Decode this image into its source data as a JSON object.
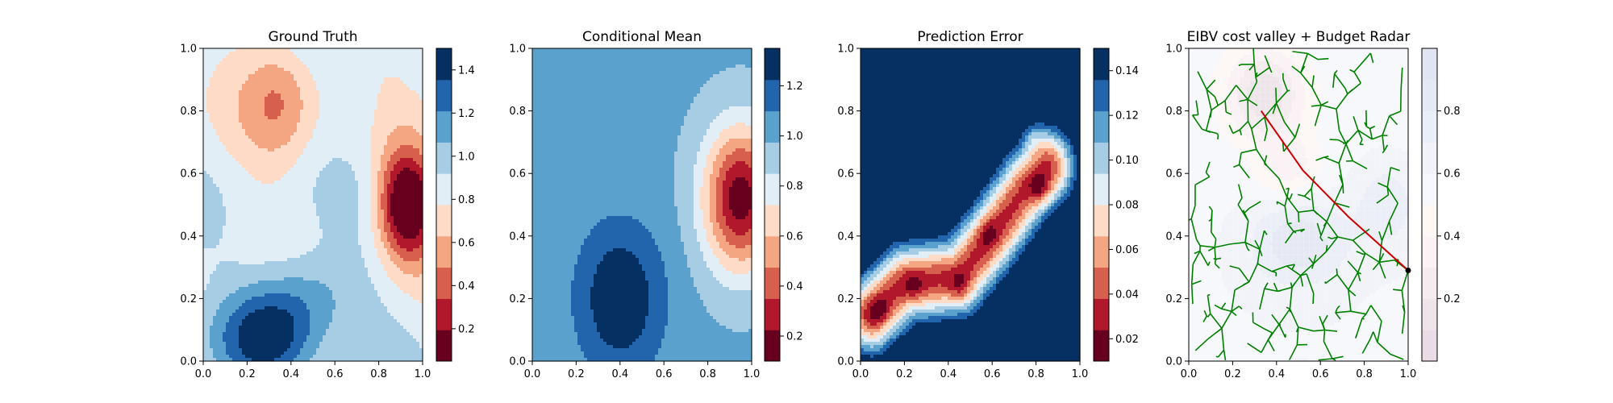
{
  "chart_data": [
    {
      "type": "heatmap",
      "title": "Ground Truth",
      "xlim": [
        0,
        1
      ],
      "ylim": [
        0,
        1
      ],
      "xticks": [
        "0.0",
        "0.2",
        "0.4",
        "0.6",
        "0.8",
        "1.0"
      ],
      "yticks": [
        "0.0",
        "0.2",
        "0.4",
        "0.6",
        "0.8",
        "1.0"
      ],
      "colormap": "RdBu",
      "colorbar": {
        "min": 0.05,
        "max": 1.5,
        "levels": 10,
        "ticks": [
          "0.2",
          "0.4",
          "0.6",
          "0.8",
          "1.0",
          "1.2",
          "1.4"
        ],
        "tick_values": [
          0.2,
          0.4,
          0.6,
          0.8,
          1.0,
          1.2,
          1.4
        ]
      },
      "field_features": [
        {
          "x": 0.93,
          "y": 0.5,
          "amp": -0.95,
          "sx": 0.09,
          "sy": 0.12
        },
        {
          "x": 0.35,
          "y": 0.85,
          "amp": -0.35,
          "sx": 0.12,
          "sy": 0.14
        },
        {
          "x": 0.3,
          "y": 0.08,
          "amp": 0.55,
          "sx": 0.16,
          "sy": 0.1
        },
        {
          "x": 0.45,
          "y": 0.22,
          "amp": 0.3,
          "sx": 0.18,
          "sy": 0.1
        },
        {
          "x": 0.72,
          "y": 0.85,
          "amp": 0.1,
          "sx": 0.06,
          "sy": 0.08
        }
      ],
      "field_base": 0.85
    },
    {
      "type": "heatmap",
      "title": "Conditional Mean",
      "xlim": [
        0,
        1
      ],
      "ylim": [
        0,
        1
      ],
      "xticks": [
        "0.0",
        "0.2",
        "0.4",
        "0.6",
        "0.8",
        "1.0"
      ],
      "yticks": [
        "0.0",
        "0.2",
        "0.4",
        "0.6",
        "0.8",
        "1.0"
      ],
      "colormap": "RdBu",
      "colorbar": {
        "min": 0.1,
        "max": 1.35,
        "levels": 10,
        "ticks": [
          "0.2",
          "0.4",
          "0.6",
          "0.8",
          "1.0",
          "1.2"
        ],
        "tick_values": [
          0.2,
          0.4,
          0.6,
          0.8,
          1.0,
          1.2
        ]
      },
      "field_features": [
        {
          "x": 0.95,
          "y": 0.52,
          "amp": -0.85,
          "sx": 0.12,
          "sy": 0.16
        },
        {
          "x": 0.4,
          "y": 0.2,
          "amp": 0.35,
          "sx": 0.14,
          "sy": 0.17
        }
      ],
      "field_base": 1.0
    },
    {
      "type": "heatmap",
      "title": "Prediction Error",
      "xlim": [
        0,
        1
      ],
      "ylim": [
        0,
        1
      ],
      "xticks": [
        "0.0",
        "0.2",
        "0.4",
        "0.6",
        "0.8",
        "1.0"
      ],
      "yticks": [
        "0.0",
        "0.2",
        "0.4",
        "0.6",
        "0.8",
        "1.0"
      ],
      "colormap": "RdBu",
      "colorbar": {
        "min": 0.01,
        "max": 0.15,
        "levels": 10,
        "ticks": [
          "0.02",
          "0.04",
          "0.06",
          "0.08",
          "0.10",
          "0.12",
          "0.14"
        ],
        "tick_values": [
          0.02,
          0.04,
          0.06,
          0.08,
          0.1,
          0.12,
          0.14
        ]
      },
      "path_points": [
        [
          0.05,
          0.15
        ],
        [
          0.2,
          0.25
        ],
        [
          0.45,
          0.27
        ],
        [
          0.6,
          0.4
        ],
        [
          0.75,
          0.55
        ],
        [
          0.85,
          0.62
        ]
      ],
      "pit_points": [
        {
          "x": 0.08,
          "y": 0.16,
          "amp": -0.025
        },
        {
          "x": 0.24,
          "y": 0.24,
          "amp": -0.02
        },
        {
          "x": 0.45,
          "y": 0.24,
          "amp": -0.02
        },
        {
          "x": 0.58,
          "y": 0.41,
          "amp": -0.02
        },
        {
          "x": 0.82,
          "y": 0.55,
          "amp": -0.03
        },
        {
          "x": 0.78,
          "y": 0.72,
          "amp": -0.02
        }
      ]
    },
    {
      "type": "heatmap",
      "title": "EIBV cost valley + Budget Radar",
      "xlim": [
        0,
        1
      ],
      "ylim": [
        0,
        1
      ],
      "xticks": [
        "0.0",
        "0.2",
        "0.4",
        "0.6",
        "0.8",
        "1.0"
      ],
      "yticks": [
        "0.0",
        "0.2",
        "0.4",
        "0.6",
        "0.8",
        "1.0"
      ],
      "colormap": "RdBu_light",
      "colorbar": {
        "min": 0.0,
        "max": 1.0,
        "levels": 10,
        "ticks": [
          "0.2",
          "0.4",
          "0.6",
          "0.8"
        ],
        "tick_values": [
          0.2,
          0.4,
          0.6,
          0.8
        ]
      },
      "tree_root": [
        1.0,
        0.29
      ],
      "tree_seed": 7,
      "tree_color": "#008000",
      "path_color": "#cc0000",
      "planned_path": [
        [
          1.0,
          0.29
        ],
        [
          0.73,
          0.46
        ],
        [
          0.52,
          0.61
        ],
        [
          0.33,
          0.8
        ]
      ]
    }
  ]
}
